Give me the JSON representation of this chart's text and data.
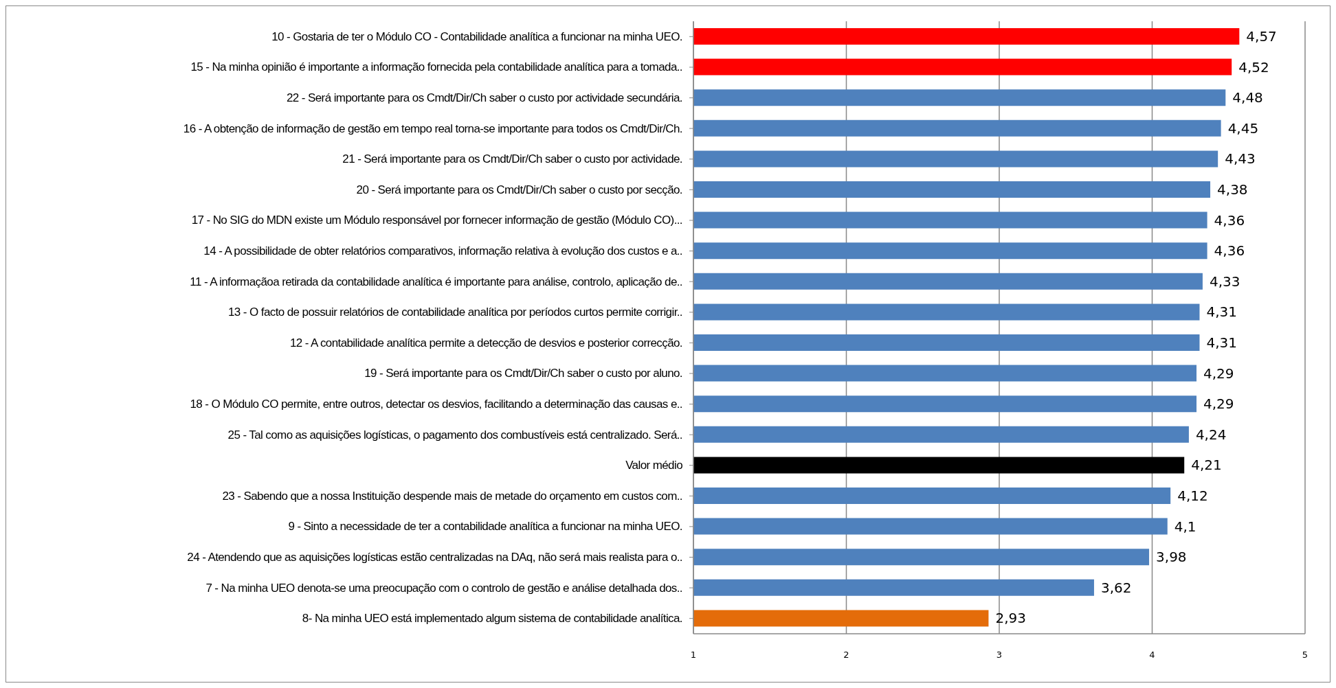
{
  "chart_data": {
    "type": "bar",
    "orientation": "horizontal",
    "categories": [
      "10 - Gostaria de ter o Módulo CO - Contabilidade analítica a funcionar na minha UEO.",
      "15 - Na minha opinião é importante a informação fornecida pela contabilidade analítica para a tomada..",
      "22 - Será importante para os Cmdt/Dir/Ch saber o custo por actividade secundária.",
      "16 -  A obtenção de informação de gestão em tempo real torna-se importante para todos os Cmdt/Dir/Ch.",
      "21 - Será importante para os Cmdt/Dir/Ch saber o custo por actividade.",
      "20 - Será importante para os Cmdt/Dir/Ch saber o custo por secção.",
      "17 - No SIG do MDN existe um Módulo responsável por fornecer informação de gestão (Módulo CO)...",
      "14 -  A possibilidade de obter relatórios comparativos, informação relativa à evolução dos custos e a..",
      "11 - A informaçãoa retirada da contabilidade analítica é importante para análise, controlo, aplicação de..",
      "13 - O facto de possuir relatórios de contabilidade analítica por períodos curtos permite corrigir..",
      "12 - A contabilidade analítica permite a detecção de desvios e posterior correcção.",
      "19 - Será importante para os Cmdt/Dir/Ch saber o custo por aluno.",
      "18 - O Módulo CO permite, entre outros, detectar os desvios, facilitando a determinação das causas e..",
      "25 -  Tal como as aquisições logísticas, o pagamento dos combustíveis está centralizado. Será..",
      "Valor médio",
      "23 - Sabendo que a nossa Instituição despende mais de metade do orçamento em custos com..",
      "9 - Sinto a necessidade de ter a contabilidade analítica a funcionar na minha UEO.",
      "24 - Atendendo que as aquisições logísticas estão centralizadas na DAq, não será mais realista para o..",
      "7 - Na minha UEO denota-se uma preocupação com o controlo de gestão e análise detalhada dos..",
      "8- Na minha UEO está implementado algum sistema de contabilidade analítica."
    ],
    "values": [
      4.57,
      4.52,
      4.48,
      4.45,
      4.43,
      4.38,
      4.36,
      4.36,
      4.33,
      4.31,
      4.31,
      4.29,
      4.29,
      4.24,
      4.21,
      4.12,
      4.1,
      3.98,
      3.62,
      2.93
    ],
    "value_labels": [
      "4,57",
      "4,52",
      "4,48",
      "4,45",
      "4,43",
      "4,38",
      "4,36",
      "4,36",
      "4,33",
      "4,31",
      "4,31",
      "4,29",
      "4,29",
      "4,24",
      "4,21",
      "4,12",
      "4,1",
      "3,98",
      "3,62",
      "2,93"
    ],
    "colors": [
      "#ff0000",
      "#ff0000",
      "#4f81bd",
      "#4f81bd",
      "#4f81bd",
      "#4f81bd",
      "#4f81bd",
      "#4f81bd",
      "#4f81bd",
      "#4f81bd",
      "#4f81bd",
      "#4f81bd",
      "#4f81bd",
      "#4f81bd",
      "#000000",
      "#4f81bd",
      "#4f81bd",
      "#4f81bd",
      "#4f81bd",
      "#e46c0a"
    ],
    "xlim": [
      1,
      5
    ],
    "xticks": [
      1,
      2,
      3,
      4,
      5
    ],
    "grid": "x",
    "legend": false
  }
}
